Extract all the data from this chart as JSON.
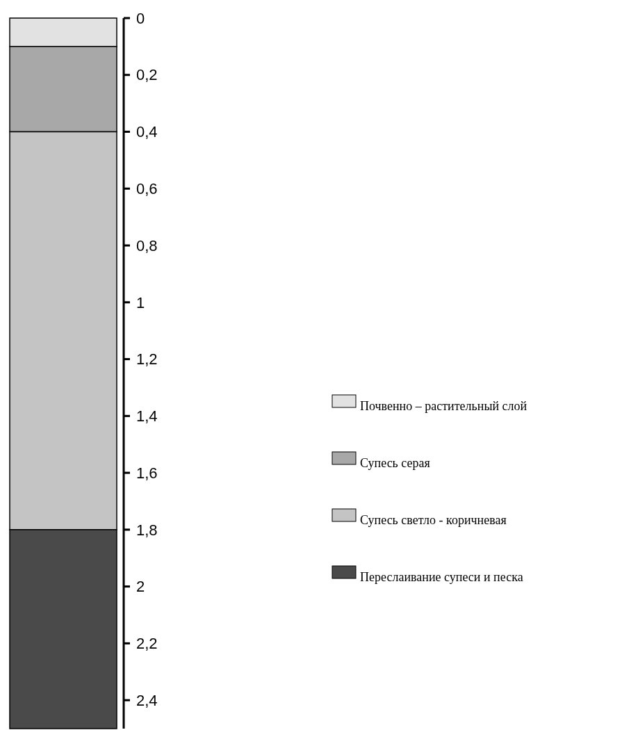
{
  "chart_data": {
    "type": "bar",
    "stacked": true,
    "categories": [
      null
    ],
    "ylim": [
      2.5,
      0
    ],
    "yticks": [
      0,
      {
        "value": 0.2,
        "label": "0,2"
      },
      {
        "value": 0.4,
        "label": "0,4"
      },
      {
        "value": 0.6,
        "label": "0,6"
      },
      {
        "value": 0.8,
        "label": "0,8"
      },
      1,
      {
        "value": 1.2,
        "label": "1,2"
      },
      {
        "value": 1.4,
        "label": "1,4"
      },
      {
        "value": 1.6,
        "label": "1,6"
      },
      {
        "value": 1.8,
        "label": "1,8"
      },
      2,
      {
        "value": 2.2,
        "label": "2,2"
      },
      {
        "value": 2.4,
        "label": "2,4"
      }
    ],
    "series": [
      {
        "name": "Почвенно – растительный слой",
        "color": "#e2e2e2",
        "values": [
          0.1
        ]
      },
      {
        "name": "Супесь серая",
        "color": "#a8a8a8",
        "values": [
          0.3
        ]
      },
      {
        "name": "Супесь светло - коричневая",
        "color": "#c4c4c4",
        "values": [
          1.4
        ]
      },
      {
        "name": "Переслаивание супеси и песка",
        "color": "#4a4a4a",
        "values": [
          0.7
        ]
      }
    ],
    "legend": "right",
    "grid": false
  }
}
